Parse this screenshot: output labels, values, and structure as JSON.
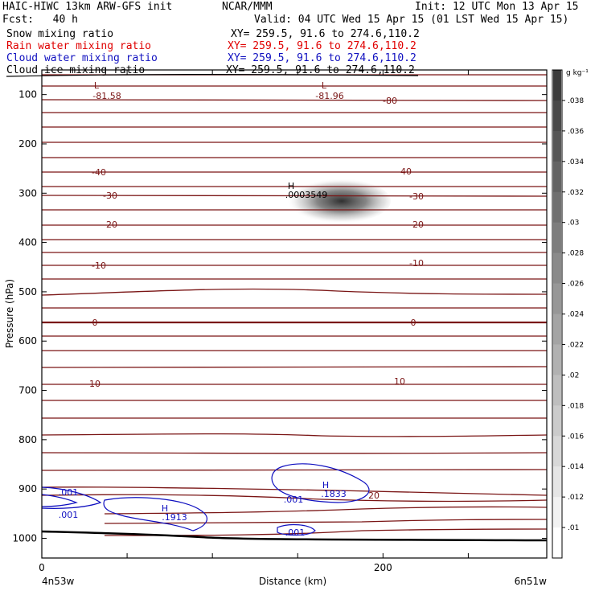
{
  "header": {
    "title": "HAIC-HIWC 13km ARW-GFS init",
    "org": "NCAR/MMM",
    "init": "Init: 12 UTC Mon 13 Apr 15",
    "fcst": "Fcst:   40 h",
    "valid": "Valid: 04 UTC Wed 15 Apr 15 (01 LST Wed 15 Apr 15)",
    "fields": [
      {
        "name": "Snow mixing ratio",
        "xy": "XY= 259.5, 91.6 to 274.6,110.2",
        "color": "#000000"
      },
      {
        "name": "Rain water mixing ratio",
        "xy": "XY= 259.5, 91.6 to 274.6,110.2",
        "color": "#e00000"
      },
      {
        "name": "Cloud water mixing ratio",
        "xy": "XY= 259.5, 91.6 to 274.6,110.2",
        "color": "#1010c0"
      },
      {
        "name": "Cloud ice mixing ratio",
        "xy": "XY= 259.5, 91.6 to 274.6,110.2",
        "color": "#000000"
      }
    ]
  },
  "chart_data": {
    "type": "contour",
    "xlabel": "Distance (km)",
    "ylabel": "Pressure (hPa)",
    "x_ticks": [
      0,
      200
    ],
    "x_range_km": [
      0,
      296
    ],
    "x_endpoint_labels": [
      "4n53w",
      "6n51w"
    ],
    "y_ticks": [
      100,
      200,
      300,
      400,
      500,
      600,
      700,
      800,
      900,
      1000
    ],
    "y_range_hpa": [
      50,
      1040
    ],
    "colorbar": {
      "unit": "g kg⁻¹",
      "labels": [
        ".038",
        ".036",
        ".034",
        ".032",
        ".03",
        ".028",
        ".026",
        ".024",
        ".022",
        ".02",
        ".018",
        ".016",
        ".014",
        ".012",
        ".01"
      ]
    },
    "temperature_contour_color": "#7a1515",
    "cloud_water_contour_color": "#1010c0",
    "temperature_label_levels": [
      "-80",
      "-40",
      "-30",
      "-20",
      "-10",
      "0",
      "10",
      "20"
    ],
    "extrema": [
      {
        "kind": "L",
        "value": "-81.58",
        "x_km": 35,
        "p_hpa": 100
      },
      {
        "kind": "L",
        "value": "-81.96",
        "x_km": 175,
        "p_hpa": 100
      },
      {
        "kind": "H",
        "value": ".0003549",
        "x_km": 163,
        "p_hpa": 307
      },
      {
        "kind": "H",
        "value": ".1833",
        "x_km": 180,
        "p_hpa": 915
      },
      {
        "kind": "H",
        "value": ".1913",
        "x_km": 77,
        "p_hpa": 955
      }
    ],
    "cloud_water_labels": [
      ".001",
      ".001",
      ".001",
      ".001",
      ".001"
    ],
    "snow_max_region": {
      "x_km": [
        150,
        212
      ],
      "p_hpa": [
        270,
        350
      ]
    }
  }
}
